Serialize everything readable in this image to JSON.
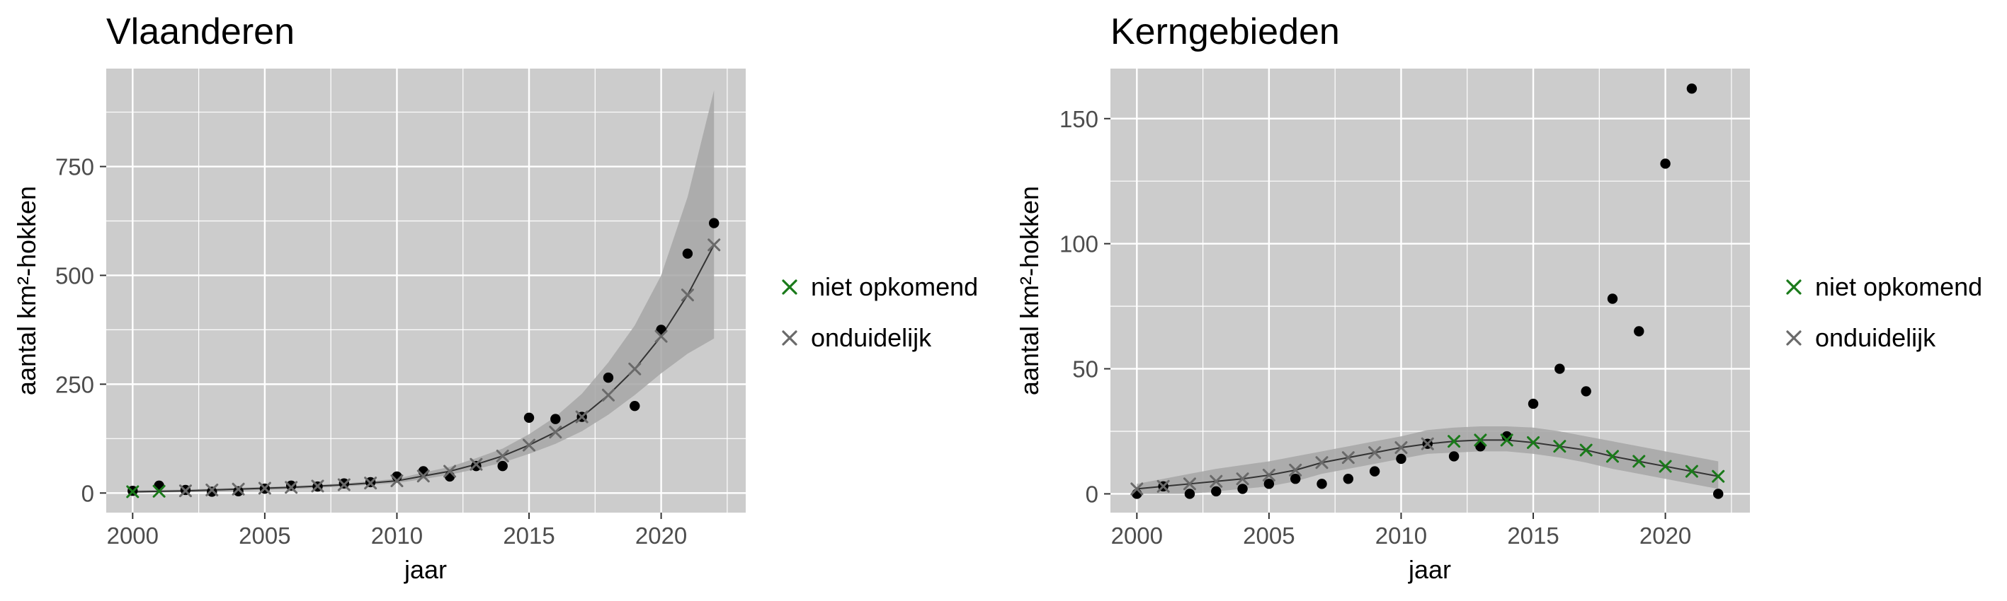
{
  "colors": {
    "panel_bg": "#cccccc",
    "grid": "#ffffff",
    "band": "#a6a6a6",
    "observed": "#000000",
    "niet_opkomend": "#1a7a1a",
    "onduidelijk": "#6a6a6a",
    "trend_line": "#333333"
  },
  "legend": {
    "items": [
      {
        "label": "niet opkomend",
        "color": "#1a7a1a",
        "symbol": "x"
      },
      {
        "label": "onduidelijk",
        "color": "#6a6a6a",
        "symbol": "x"
      }
    ]
  },
  "chart_data": [
    {
      "type": "scatter",
      "title": "Vlaanderen",
      "xlabel": "jaar",
      "ylabel": "aantal km²-hokken",
      "xlim": [
        1999,
        2023.2
      ],
      "ylim": [
        -45,
        975
      ],
      "xticks": [
        2000,
        2005,
        2010,
        2015,
        2020
      ],
      "yticks": [
        0,
        250,
        500,
        750
      ],
      "legend_position": "right",
      "observed": {
        "x": [
          2000,
          2001,
          2002,
          2003,
          2004,
          2005,
          2006,
          2007,
          2008,
          2009,
          2010,
          2011,
          2012,
          2013,
          2014,
          2015,
          2016,
          2017,
          2018,
          2019,
          2020,
          2021,
          2022
        ],
        "y": [
          5,
          17,
          7,
          3,
          4,
          10,
          17,
          15,
          22,
          25,
          38,
          50,
          38,
          62,
          62,
          173,
          170,
          175,
          265,
          200,
          375,
          550,
          620
        ]
      },
      "trend": {
        "x": [
          2000,
          2001,
          2002,
          2003,
          2004,
          2005,
          2006,
          2007,
          2008,
          2009,
          2010,
          2011,
          2012,
          2013,
          2014,
          2015,
          2016,
          2017,
          2018,
          2019,
          2020,
          2021,
          2022
        ],
        "y": [
          3,
          4,
          5,
          7,
          9,
          11,
          13,
          16,
          19,
          23,
          28,
          39,
          50,
          66,
          85,
          110,
          140,
          175,
          225,
          285,
          360,
          455,
          570
        ],
        "lower": [
          0,
          1,
          2,
          3,
          5,
          7,
          9,
          12,
          15,
          19,
          23,
          32,
          42,
          55,
          70,
          90,
          113,
          142,
          180,
          225,
          275,
          320,
          355
        ],
        "upper": [
          6,
          7,
          8,
          10,
          12,
          14,
          16,
          19,
          22,
          27,
          33,
          47,
          60,
          80,
          102,
          135,
          175,
          228,
          300,
          385,
          500,
          680,
          925
        ],
        "status": [
          "niet opkomend",
          "niet opkomend",
          "onduidelijk",
          "onduidelijk",
          "onduidelijk",
          "onduidelijk",
          "onduidelijk",
          "onduidelijk",
          "onduidelijk",
          "onduidelijk",
          "onduidelijk",
          "onduidelijk",
          "onduidelijk",
          "onduidelijk",
          "onduidelijk",
          "onduidelijk",
          "onduidelijk",
          "onduidelijk",
          "onduidelijk",
          "onduidelijk",
          "onduidelijk",
          "onduidelijk",
          "onduidelijk"
        ]
      }
    },
    {
      "type": "scatter",
      "title": "Kerngebieden",
      "xlabel": "jaar",
      "ylabel": "aantal km²-hokken",
      "xlim": [
        1999,
        2023.2
      ],
      "ylim": [
        -7.5,
        170
      ],
      "xticks": [
        2000,
        2005,
        2010,
        2015,
        2020
      ],
      "yticks": [
        0,
        50,
        100,
        150
      ],
      "legend_position": "right",
      "observed": {
        "x": [
          2000,
          2001,
          2002,
          2003,
          2004,
          2005,
          2006,
          2007,
          2008,
          2009,
          2010,
          2011,
          2012,
          2013,
          2014,
          2015,
          2016,
          2017,
          2018,
          2019,
          2020,
          2021,
          2022
        ],
        "y": [
          0,
          3,
          0,
          1,
          2,
          4,
          6,
          4,
          6,
          9,
          14,
          20,
          15,
          19,
          23,
          36,
          50,
          41,
          78,
          65,
          132,
          162,
          0
        ]
      },
      "trend": {
        "x": [
          2000,
          2001,
          2002,
          2003,
          2004,
          2005,
          2006,
          2007,
          2008,
          2009,
          2010,
          2011,
          2012,
          2013,
          2014,
          2015,
          2016,
          2017,
          2018,
          2019,
          2020,
          2021,
          2022
        ],
        "y": [
          2,
          3,
          4,
          5,
          6,
          7.5,
          9.5,
          12.5,
          14.5,
          16.5,
          18.5,
          20,
          21,
          21.5,
          21.5,
          20.5,
          19,
          17.5,
          15,
          13,
          11,
          9,
          7
        ],
        "lower": [
          0,
          0,
          0,
          1,
          2,
          3,
          5,
          8,
          10,
          12,
          14,
          16,
          16.5,
          17,
          17,
          16,
          14.5,
          12.5,
          10,
          8,
          6,
          4,
          2
        ],
        "upper": [
          4,
          6,
          8,
          10,
          11.5,
          13,
          15,
          17,
          19,
          21,
          23,
          25.5,
          26.5,
          27,
          27,
          26.5,
          25,
          23,
          21,
          19,
          17,
          15,
          13
        ],
        "status": [
          "onduidelijk",
          "onduidelijk",
          "onduidelijk",
          "onduidelijk",
          "onduidelijk",
          "onduidelijk",
          "onduidelijk",
          "onduidelijk",
          "onduidelijk",
          "onduidelijk",
          "onduidelijk",
          "onduidelijk",
          "niet opkomend",
          "niet opkomend",
          "niet opkomend",
          "niet opkomend",
          "niet opkomend",
          "niet opkomend",
          "niet opkomend",
          "niet opkomend",
          "niet opkomend",
          "niet opkomend",
          "niet opkomend"
        ]
      }
    }
  ]
}
